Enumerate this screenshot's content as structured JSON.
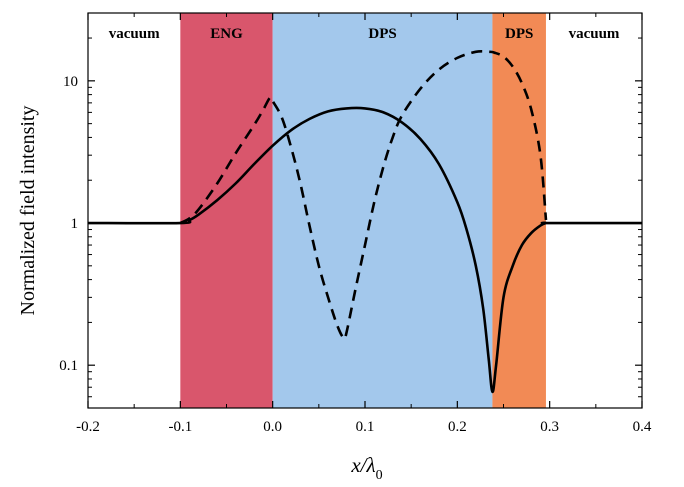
{
  "chart_data": {
    "type": "line",
    "ylabel": "Normalized field intensity",
    "xlabel": {
      "main": "x/λ",
      "sub": "0"
    },
    "xlim": [
      -0.2,
      0.4
    ],
    "ylim": [
      0.05,
      30
    ],
    "yscale": "log",
    "x_ticks": [
      {
        "value": -0.2,
        "label": "-0.2"
      },
      {
        "value": -0.1,
        "label": "-0.1"
      },
      {
        "value": 0.0,
        "label": "0.0"
      },
      {
        "value": 0.1,
        "label": "0.1"
      },
      {
        "value": 0.2,
        "label": "0.2"
      },
      {
        "value": 0.3,
        "label": "0.3"
      },
      {
        "value": 0.4,
        "label": "0.4"
      }
    ],
    "y_ticks": [
      {
        "value": 0.1,
        "label": "0.1"
      },
      {
        "value": 1,
        "label": "1"
      },
      {
        "value": 10,
        "label": "10"
      }
    ],
    "regions": [
      {
        "label": "vacuum",
        "x0": -0.2,
        "x1": -0.1,
        "color": "#ffffff"
      },
      {
        "label": "ENG",
        "x0": -0.1,
        "x1": 0.0,
        "color": "#d9566c"
      },
      {
        "label": "DPS",
        "x0": 0.0,
        "x1": 0.238,
        "color": "#a3c8ec"
      },
      {
        "label": "DPS",
        "x0": 0.238,
        "x1": 0.296,
        "color": "#f28a55"
      },
      {
        "label": "vacuum",
        "x0": 0.296,
        "x1": 0.4,
        "color": "#ffffff"
      }
    ],
    "series": [
      {
        "style": "solid",
        "color": "#000000",
        "x": [
          -0.2,
          -0.1,
          -0.09,
          -0.08,
          -0.06,
          -0.04,
          -0.02,
          0.0,
          0.02,
          0.04,
          0.06,
          0.08,
          0.1,
          0.12,
          0.14,
          0.16,
          0.18,
          0.2,
          0.21,
          0.22,
          0.228,
          0.234,
          0.238,
          0.242,
          0.25,
          0.26,
          0.27,
          0.28,
          0.29,
          0.296,
          0.3,
          0.4
        ],
        "y": [
          1.0,
          1.0,
          1.05,
          1.15,
          1.45,
          1.9,
          2.6,
          3.5,
          4.5,
          5.4,
          6.1,
          6.4,
          6.4,
          6.0,
          5.1,
          3.9,
          2.6,
          1.4,
          0.9,
          0.5,
          0.25,
          0.11,
          0.065,
          0.1,
          0.3,
          0.5,
          0.7,
          0.85,
          0.96,
          1.0,
          1.0,
          1.0
        ]
      },
      {
        "style": "dashed",
        "color": "#000000",
        "x": [
          -0.1,
          -0.09,
          -0.08,
          -0.06,
          -0.04,
          -0.02,
          -0.01,
          -0.003,
          0.0,
          0.01,
          0.02,
          0.03,
          0.04,
          0.05,
          0.06,
          0.07,
          0.077,
          0.08,
          0.09,
          0.1,
          0.11,
          0.12,
          0.13,
          0.14,
          0.16,
          0.18,
          0.2,
          0.22,
          0.235,
          0.24,
          0.25,
          0.26,
          0.27,
          0.28,
          0.29,
          0.296
        ],
        "y": [
          1.0,
          1.08,
          1.25,
          1.9,
          3.1,
          4.9,
          6.3,
          7.6,
          7.2,
          5.5,
          3.4,
          1.9,
          0.95,
          0.5,
          0.3,
          0.19,
          0.155,
          0.17,
          0.35,
          0.7,
          1.4,
          2.5,
          4.0,
          5.7,
          8.8,
          12.0,
          14.5,
          16.0,
          16.0,
          15.8,
          14.8,
          12.6,
          9.6,
          6.3,
          3.0,
          1.05
        ]
      }
    ]
  }
}
